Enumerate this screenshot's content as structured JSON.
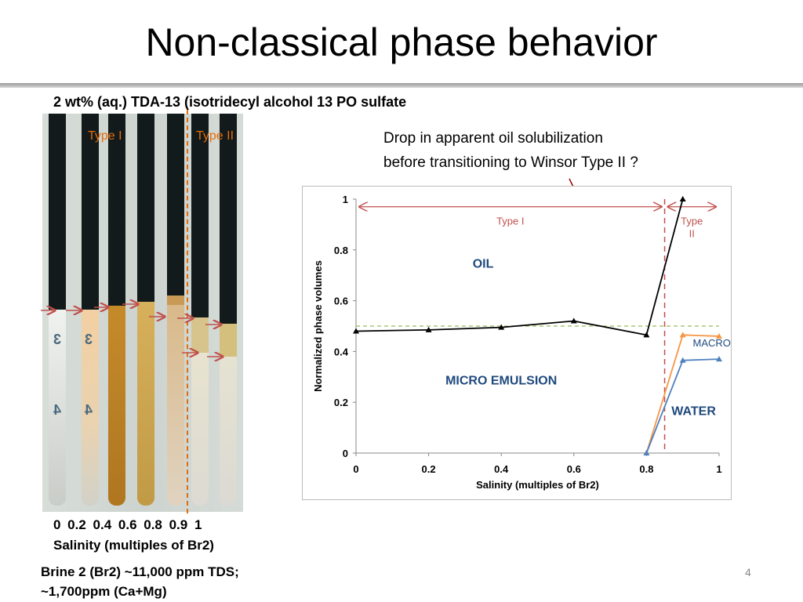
{
  "slide": {
    "title": "Non-classical phase behavior",
    "subtitle": "2 wt% (aq.) TDA-13 (isotridecyl alcohol 13 PO sulfate",
    "annotation_line1": "Drop in apparent oil solubilization",
    "annotation_line2": "before transitioning to Winsor Type II ?",
    "page_number": "4"
  },
  "photo": {
    "label_type1": "Type I",
    "label_type2": "Type II",
    "numeral_3": "3",
    "numeral_4": "4",
    "tick_labels": "0  0.2  0.4  0.6  0.8  0.9  1",
    "xlabel": "Salinity (multiples of Br2)"
  },
  "brine": {
    "line1": "Brine 2 (Br2)  ~11,000 ppm TDS;",
    "line2": "~1,700ppm (Ca+Mg)"
  },
  "chart_data": {
    "type": "line",
    "title": "",
    "xlabel": "Salinity (multiples of Br2)",
    "ylabel": "Normalized phase volumes",
    "xlim": [
      0,
      1
    ],
    "ylim": [
      0,
      1
    ],
    "xticks": [
      0,
      0.2,
      0.4,
      0.6,
      0.8,
      1
    ],
    "yticks": [
      0,
      0.2,
      0.4,
      0.6,
      0.8,
      1
    ],
    "xtick_labels": [
      "0",
      "0.2",
      "0.4",
      "0.6",
      "0.8",
      "1"
    ],
    "ytick_labels": [
      "0",
      "0.2",
      "0.4",
      "0.6",
      "0.8",
      "1"
    ],
    "grid": false,
    "series": [
      {
        "name": "",
        "color": "#000000",
        "marker": "triangle",
        "x": [
          0,
          0.2,
          0.4,
          0.6,
          0.8,
          0.9
        ],
        "y": [
          0.48,
          0.485,
          0.495,
          0.52,
          0.465,
          1.0
        ]
      },
      {
        "name": "",
        "color": "#f79646",
        "marker": "triangle",
        "x": [
          0.8,
          0.9,
          1.0
        ],
        "y": [
          0.0,
          0.465,
          0.46
        ]
      },
      {
        "name": "",
        "color": "#4f81bd",
        "marker": "triangle",
        "x": [
          0.8,
          0.9,
          1.0
        ],
        "y": [
          0.0,
          0.365,
          0.37
        ]
      }
    ],
    "reference_line": {
      "y": 0.5,
      "color": "#9bbb59",
      "style": "dashed"
    },
    "boundary_line": {
      "x": 0.85,
      "color": "#c0504d",
      "style": "dashed"
    },
    "region_labels": [
      {
        "text": "OIL",
        "x": 0.35,
        "y": 0.73,
        "color": "#1f497d"
      },
      {
        "text": "MICRO EMULSION",
        "x": 0.4,
        "y": 0.27,
        "color": "#1f497d"
      },
      {
        "text": "MACRO",
        "x": 0.98,
        "y": 0.42,
        "color": "#1f497d"
      },
      {
        "text": "WATER",
        "x": 0.93,
        "y": 0.15,
        "color": "#1f497d"
      }
    ],
    "range_arrows": [
      {
        "label": "Type I",
        "x_from": 0.0,
        "x_to": 0.85,
        "y": 0.97,
        "color": "#c0504d"
      },
      {
        "label": "Type II",
        "x_from": 0.85,
        "x_to": 1.0,
        "y": 0.97,
        "color": "#c0504d"
      }
    ]
  }
}
